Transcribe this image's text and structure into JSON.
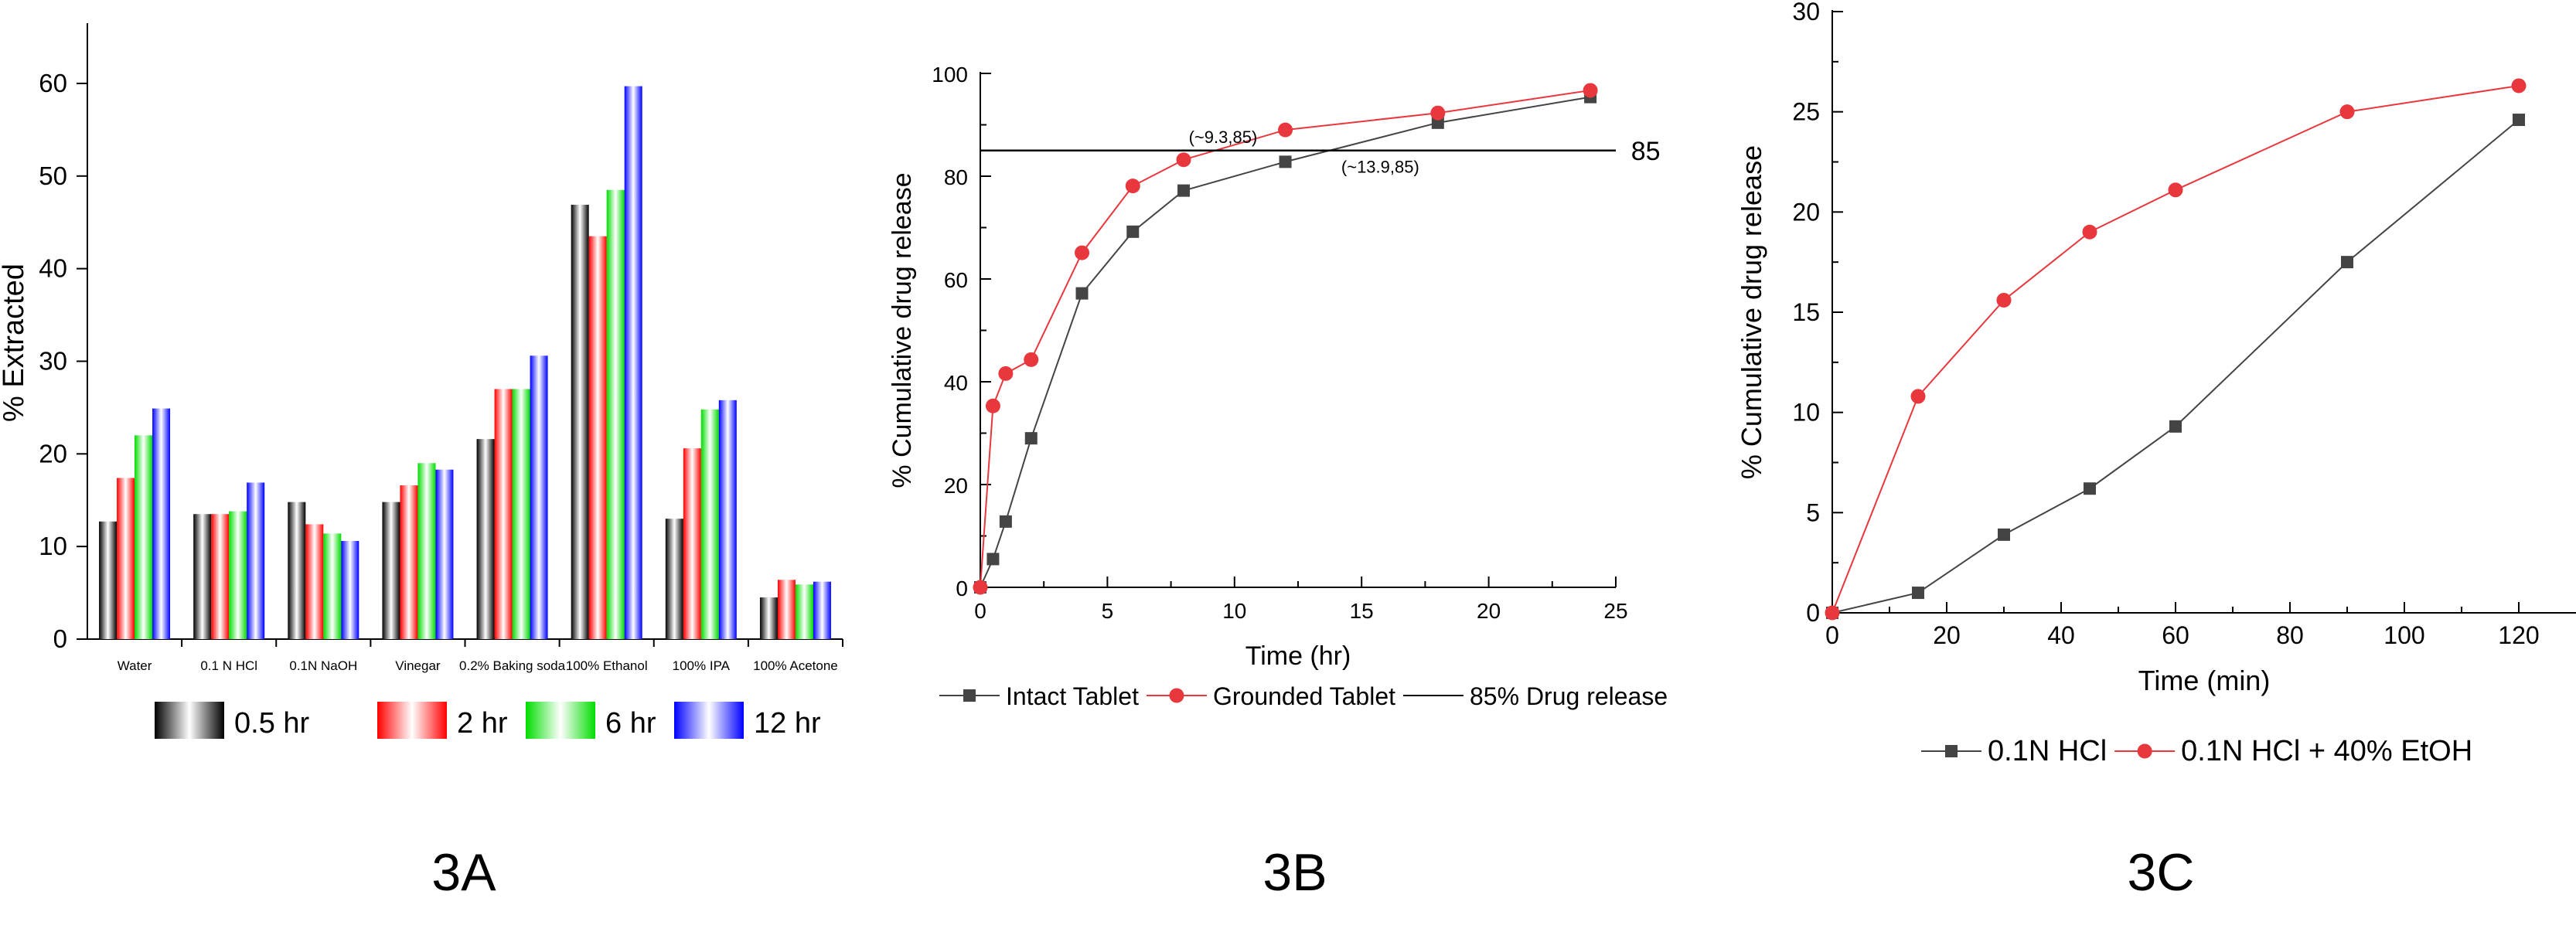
{
  "chart_data": [
    {
      "type": "bar",
      "panel_label": "3A",
      "title": "",
      "xlabel": "",
      "ylabel": "% Extracted",
      "ylim": [
        0,
        64
      ],
      "yticks": [
        0,
        10,
        20,
        30,
        40,
        50,
        60
      ],
      "categories": [
        "Water",
        "0.1 N HCl",
        "0.1N NaOH",
        "Vinegar",
        "0.2% Baking soda",
        "100% Ethanol",
        "100% IPA",
        "100% Acetone"
      ],
      "series": [
        {
          "name": "0.5 hr",
          "color": "#000000",
          "values": [
            12.7,
            13.5,
            14.8,
            14.8,
            21.6,
            46.9,
            13.0,
            4.5
          ]
        },
        {
          "name": "2 hr",
          "color": "#ff0000",
          "values": [
            17.4,
            13.5,
            12.4,
            16.6,
            27.0,
            43.5,
            20.6,
            6.4
          ]
        },
        {
          "name": "6 hr",
          "color": "#00dd00",
          "values": [
            22.0,
            13.8,
            11.4,
            19.0,
            27.0,
            48.5,
            24.8,
            5.9
          ]
        },
        {
          "name": "12 hr",
          "color": "#0000ff",
          "values": [
            24.9,
            16.9,
            10.6,
            18.3,
            30.6,
            59.7,
            25.8,
            6.2
          ]
        }
      ],
      "legend_position": "bottom",
      "grid": false
    },
    {
      "type": "line",
      "panel_label": "3B",
      "title": "",
      "xlabel": "Time (hr)",
      "ylabel": "% Cumulative drug release",
      "xlim": [
        0,
        25
      ],
      "ylim": [
        0,
        100
      ],
      "xticks": [
        0,
        5,
        10,
        15,
        20,
        25
      ],
      "yticks": [
        0,
        20,
        40,
        60,
        80,
        100
      ],
      "series": [
        {
          "name": "Intact Tablet",
          "color": "#444444",
          "marker": "square",
          "x": [
            0,
            0.5,
            1,
            2,
            4,
            6,
            8,
            12,
            18,
            24
          ],
          "y": [
            0,
            5.5,
            12.8,
            29,
            57.2,
            69.2,
            77.2,
            82.8,
            90.4,
            95.4
          ]
        },
        {
          "name": "Grounded Tablet",
          "color": "#e8383d",
          "marker": "circle",
          "x": [
            0,
            0.5,
            1,
            2,
            4,
            6,
            8,
            12,
            18,
            24
          ],
          "y": [
            0,
            35.3,
            41.6,
            44.3,
            65.1,
            78.1,
            83.2,
            89.0,
            92.3,
            96.7
          ]
        },
        {
          "name": "85% Drug release",
          "color": "#000000",
          "marker": "none",
          "y_const": 85,
          "x": [
            0,
            25
          ],
          "y": [
            85,
            85
          ]
        }
      ],
      "annotations": [
        {
          "text": "(~9.3,85)",
          "x": 8.2,
          "y": 87.5
        },
        {
          "text": "(~13.9,85)",
          "x": 14.2,
          "y": 81.7
        },
        {
          "text": "85",
          "x": 25.6,
          "y": 85
        }
      ],
      "legend_position": "bottom",
      "grid": false
    },
    {
      "type": "line",
      "panel_label": "3C",
      "title": "",
      "xlabel": "Time (min)",
      "ylabel": "% Cumulative drug release",
      "xlim": [
        0,
        130
      ],
      "ylim": [
        0,
        30
      ],
      "xticks": [
        0,
        20,
        40,
        60,
        80,
        100,
        120
      ],
      "yticks": [
        0,
        5,
        10,
        15,
        20,
        25,
        30
      ],
      "series": [
        {
          "name": "0.1N HCl",
          "color": "#444444",
          "marker": "square",
          "x": [
            0,
            15,
            30,
            45,
            60,
            90,
            120
          ],
          "y": [
            0,
            1.0,
            3.9,
            6.2,
            9.3,
            17.5,
            24.6
          ]
        },
        {
          "name": "0.1N HCl + 40% EtOH",
          "color": "#e8383d",
          "marker": "circle",
          "x": [
            0,
            15,
            30,
            45,
            60,
            90,
            120
          ],
          "y": [
            0,
            10.8,
            15.6,
            19.0,
            21.1,
            25.0,
            26.3
          ]
        }
      ],
      "legend_position": "bottom",
      "grid": false
    }
  ]
}
